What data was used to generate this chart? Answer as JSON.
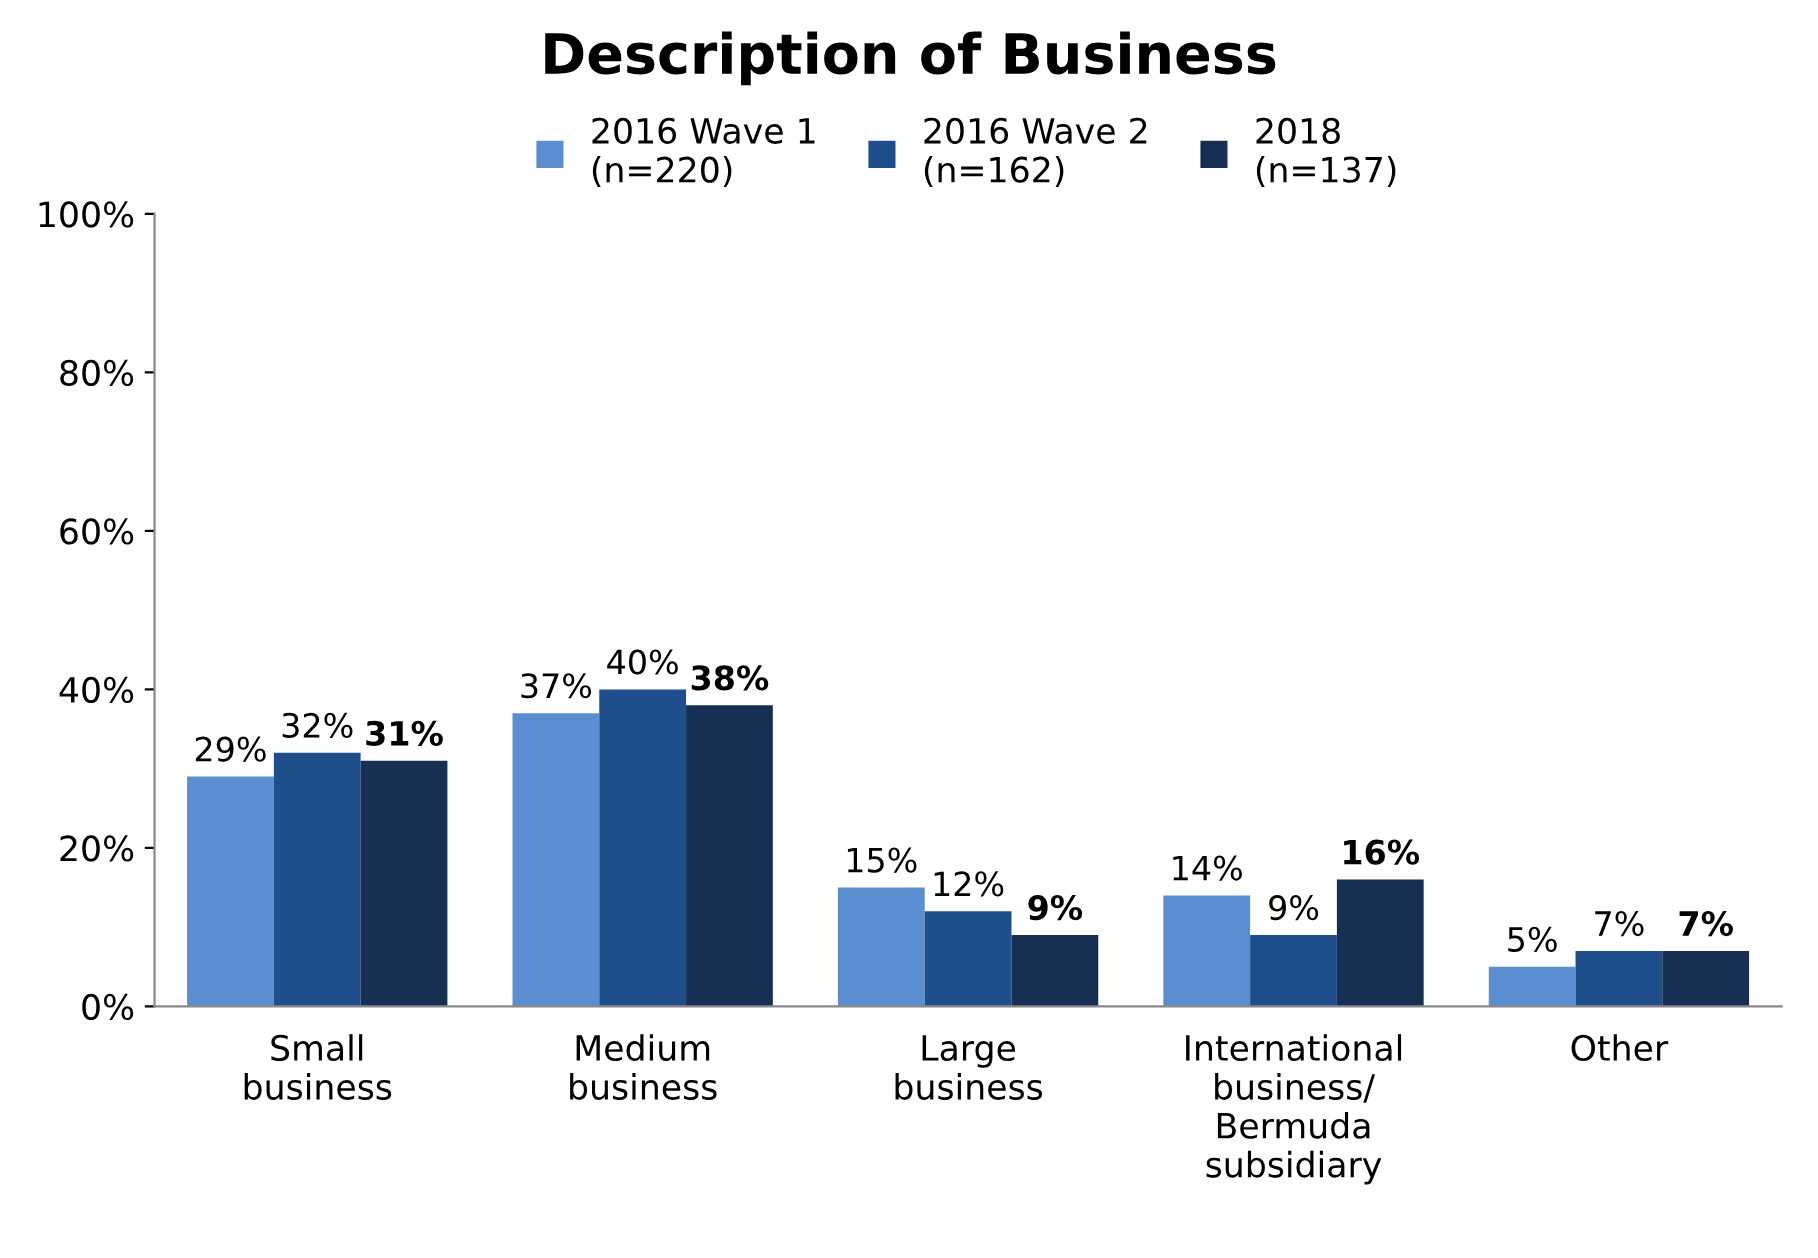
{
  "chart_data": {
    "type": "bar",
    "title": "Description of Business",
    "categories": [
      "Small\nbusiness",
      "Medium\nbusiness",
      "Large\nbusiness",
      "International\nbusiness/\nBermuda\nsubsidiary",
      "Other"
    ],
    "series": [
      {
        "name": "2016 Wave 1\n(n=220)",
        "color": "#5b8ed0",
        "values": [
          29,
          37,
          15,
          14,
          5
        ],
        "value_labels": [
          "29%",
          "37%",
          "15%",
          "14%",
          "5%"
        ]
      },
      {
        "name": "2016 Wave 2\n(n=162)",
        "color": "#1f4e8c",
        "values": [
          32,
          40,
          12,
          9,
          7
        ],
        "value_labels": [
          "32%",
          "40%",
          "12%",
          "9%",
          "7%"
        ]
      },
      {
        "name": "2018\n(n=137)",
        "color": "#172f52",
        "values": [
          31,
          38,
          9,
          16,
          7
        ],
        "value_labels": [
          "31%",
          "38%",
          "9%",
          "16%",
          "7%"
        ]
      }
    ],
    "ylim": [
      0,
      100
    ],
    "yticks": [
      {
        "value": 0,
        "label": "0%"
      },
      {
        "value": 20,
        "label": "20%"
      },
      {
        "value": 40,
        "label": "40%"
      },
      {
        "value": 60,
        "label": "60%"
      },
      {
        "value": 80,
        "label": "80%"
      },
      {
        "value": 100,
        "label": "100%"
      }
    ],
    "grid": false,
    "legend": "top"
  }
}
